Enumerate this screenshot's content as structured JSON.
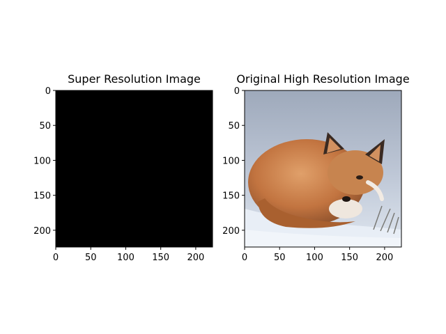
{
  "chart_data": [
    {
      "type": "image",
      "title": "Super Resolution Image",
      "xlim": [
        0,
        224
      ],
      "ylim": [
        224,
        0
      ],
      "xticks": [
        0,
        50,
        100,
        150,
        200
      ],
      "yticks": [
        0,
        50,
        100,
        150,
        200
      ],
      "image_content": "solid black",
      "fill_color": "#000000"
    },
    {
      "type": "image",
      "title": "Original High Resolution Image",
      "xlim": [
        0,
        224
      ],
      "ylim": [
        224,
        0
      ],
      "xticks": [
        0,
        50,
        100,
        150,
        200
      ],
      "yticks": [
        0,
        50,
        100,
        150,
        200
      ],
      "image_content": "photo of a red fox curled up in snow",
      "background_color": "#b9c3d3",
      "snow_color": "#e6ecf4",
      "fox_color": "#c77a45"
    }
  ]
}
